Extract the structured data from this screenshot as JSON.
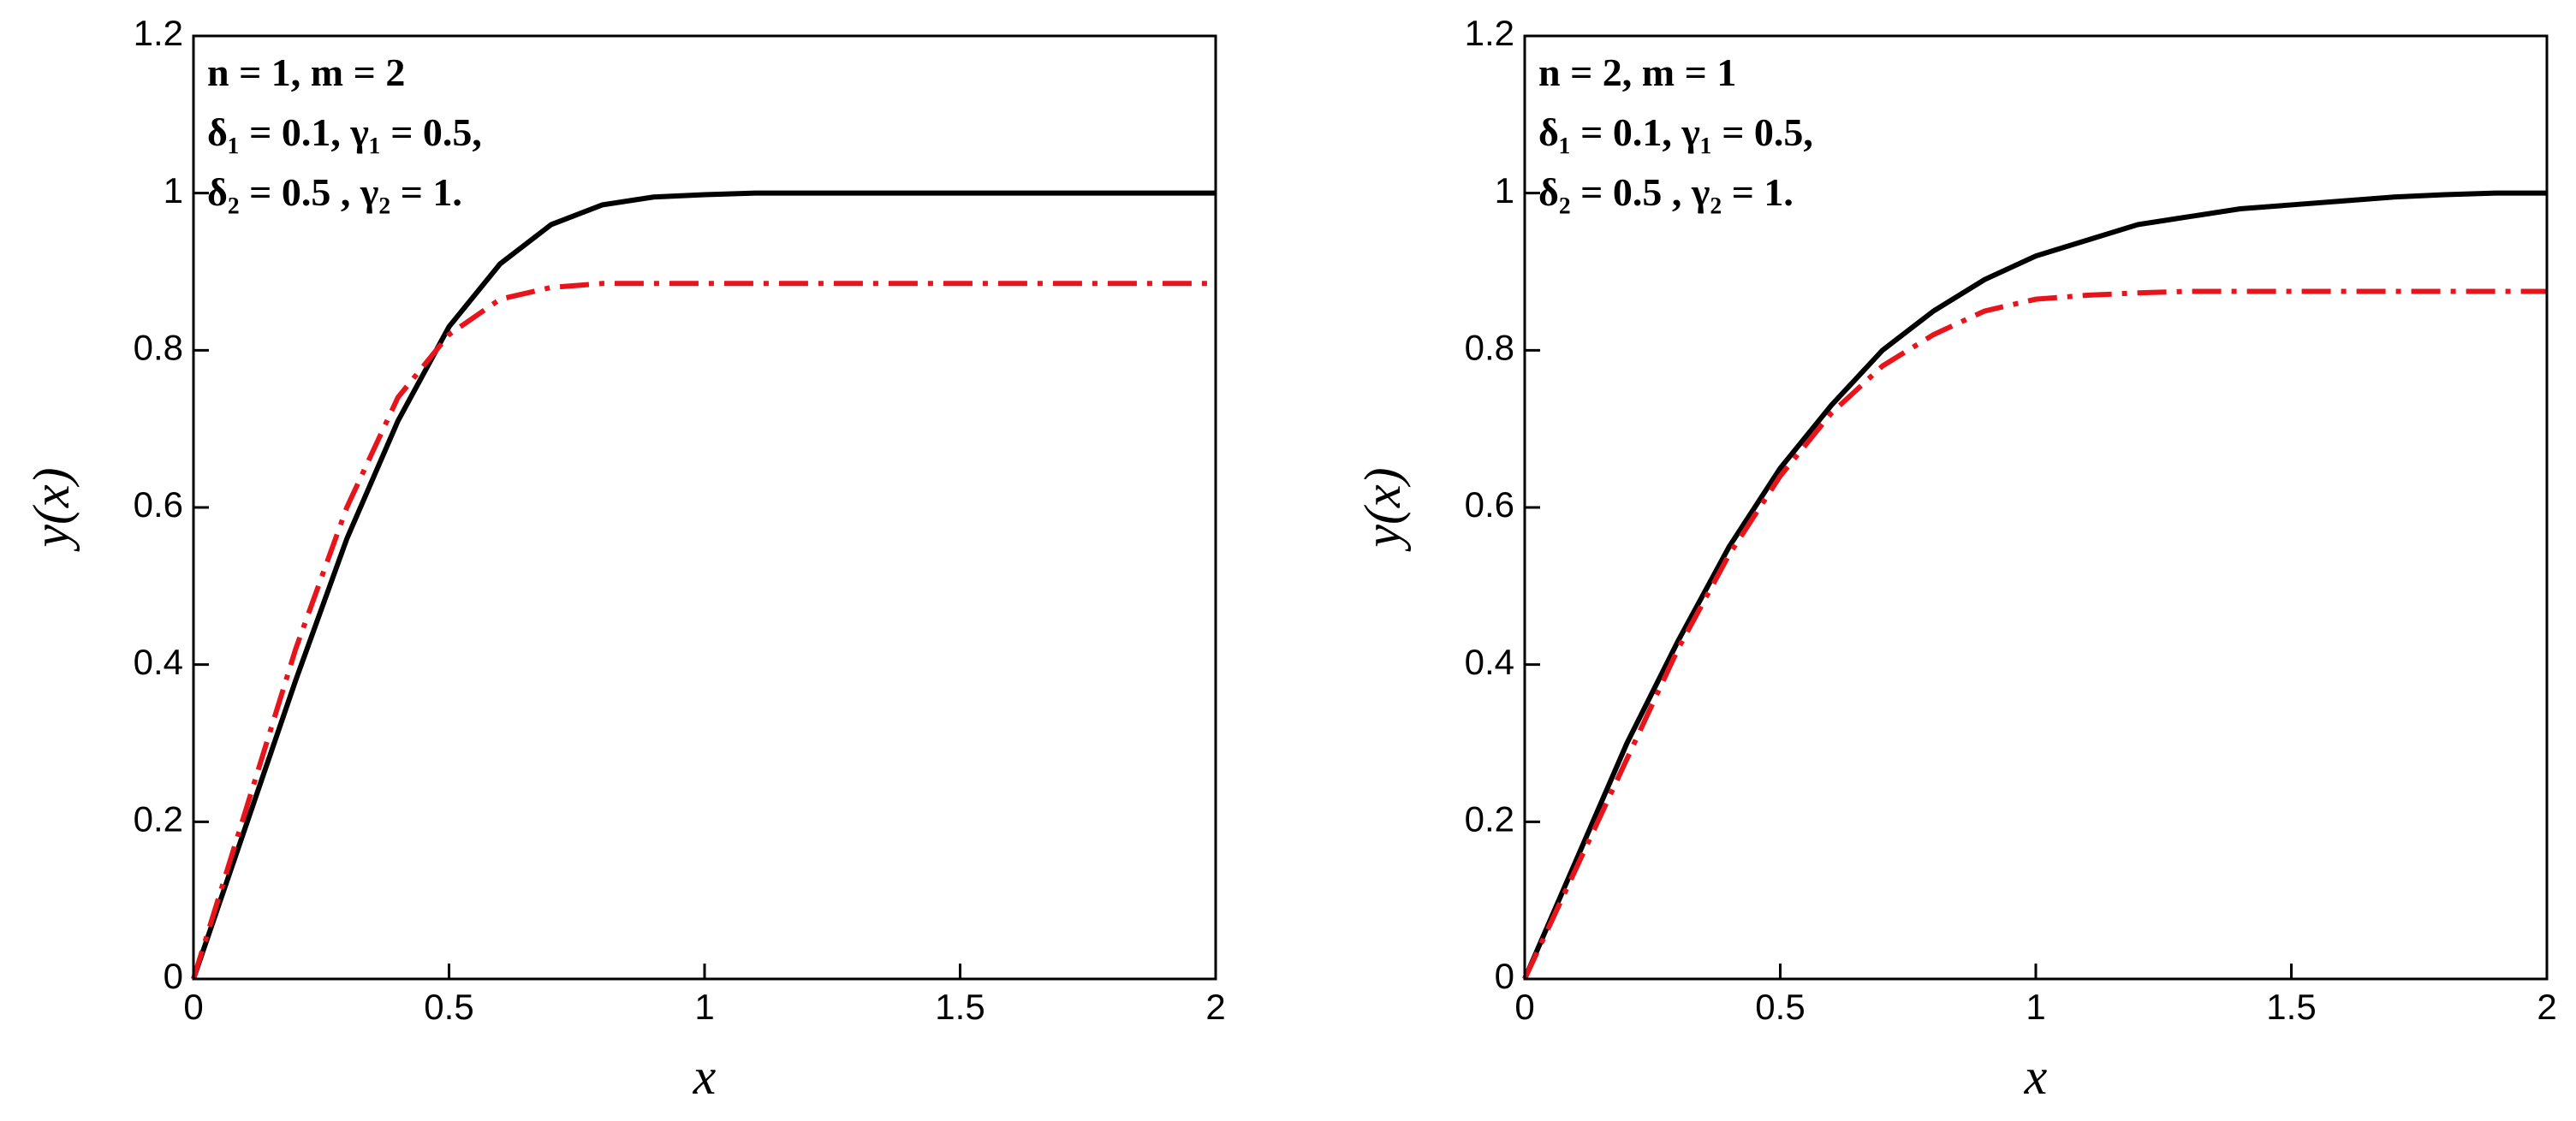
{
  "chart_data": [
    {
      "type": "line",
      "xlabel": "x",
      "ylabel": "y(x)",
      "annotations": [
        "n = 1, m = 2",
        "δ₁ = 0.1, γ₁ = 0.5,",
        "δ₂ = 0.5 , γ₂ = 1."
      ],
      "x": [
        0,
        0.1,
        0.2,
        0.3,
        0.4,
        0.5,
        0.6,
        0.7,
        0.8,
        0.9,
        1,
        1.1,
        1.2,
        1.3,
        1.4,
        1.5,
        1.6,
        1.7,
        1.8,
        1.9,
        2
      ],
      "series": [
        {
          "color": "#000000",
          "linestyle": "solid",
          "values": [
            0,
            0.19,
            0.38,
            0.56,
            0.71,
            0.83,
            0.91,
            0.96,
            0.985,
            0.995,
            0.998,
            1,
            1,
            1,
            1,
            1,
            1,
            1,
            1,
            1,
            1
          ]
        },
        {
          "color": "#e8141c",
          "linestyle": "dashdot",
          "values": [
            0,
            0.21,
            0.42,
            0.6,
            0.74,
            0.82,
            0.865,
            0.88,
            0.885,
            0.885,
            0.885,
            0.885,
            0.885,
            0.885,
            0.885,
            0.885,
            0.885,
            0.885,
            0.885,
            0.885,
            0.885
          ]
        }
      ],
      "xlim": [
        0,
        2
      ],
      "ylim": [
        0,
        1.2
      ],
      "xticks": [
        0,
        0.5,
        1,
        1.5,
        2
      ],
      "yticks": [
        0,
        0.2,
        0.4,
        0.6,
        0.8,
        1,
        1.2
      ]
    },
    {
      "type": "line",
      "xlabel": "x",
      "ylabel": "y(x)",
      "annotations": [
        "n = 2, m = 1",
        "δ₁ = 0.1, γ₁ = 0.5,",
        "δ₂ = 0.5 , γ₂ = 1."
      ],
      "x": [
        0,
        0.1,
        0.2,
        0.3,
        0.4,
        0.5,
        0.6,
        0.7,
        0.8,
        0.9,
        1,
        1.1,
        1.2,
        1.3,
        1.4,
        1.5,
        1.6,
        1.7,
        1.8,
        1.9,
        2
      ],
      "series": [
        {
          "color": "#000000",
          "linestyle": "solid",
          "values": [
            0,
            0.15,
            0.3,
            0.43,
            0.55,
            0.65,
            0.73,
            0.8,
            0.85,
            0.89,
            0.92,
            0.94,
            0.96,
            0.97,
            0.98,
            0.985,
            0.99,
            0.995,
            0.998,
            1,
            1
          ]
        },
        {
          "color": "#e8141c",
          "linestyle": "dashdot",
          "values": [
            0,
            0.14,
            0.28,
            0.42,
            0.54,
            0.64,
            0.72,
            0.78,
            0.82,
            0.85,
            0.865,
            0.87,
            0.873,
            0.875,
            0.875,
            0.875,
            0.875,
            0.875,
            0.875,
            0.875,
            0.875
          ]
        }
      ],
      "xlim": [
        0,
        2
      ],
      "ylim": [
        0,
        1.2
      ],
      "xticks": [
        0,
        0.5,
        1,
        1.5,
        2
      ],
      "yticks": [
        0,
        0.2,
        0.4,
        0.6,
        0.8,
        1,
        1.2
      ]
    }
  ]
}
